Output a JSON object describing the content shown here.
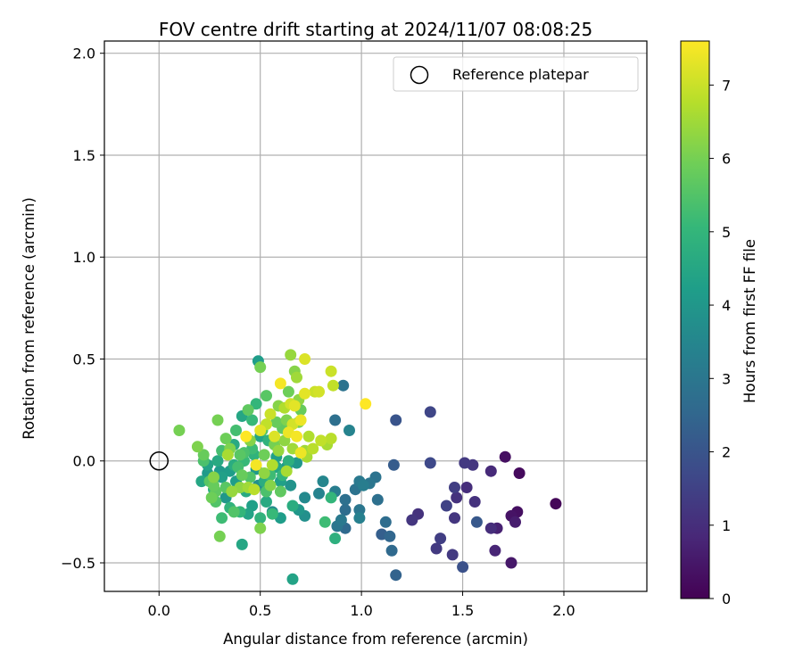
{
  "chart_data": {
    "type": "scatter",
    "title": "FOV centre drift starting at 2024/11/07 08:08:25",
    "xlabel": "Angular distance from reference (arcmin)",
    "ylabel": "Rotation from reference (arcmin)",
    "xlim": [
      -0.27,
      2.41
    ],
    "ylim": [
      -0.64,
      2.06
    ],
    "xticks": [
      0.0,
      0.5,
      1.0,
      1.5,
      2.0
    ],
    "xtick_labels": [
      "0.0",
      "0.5",
      "1.0",
      "1.5",
      "2.0"
    ],
    "yticks": [
      -0.5,
      0.0,
      0.5,
      1.0,
      1.5,
      2.0
    ],
    "ytick_labels": [
      "−0.5",
      "0.0",
      "0.5",
      "1.0",
      "1.5",
      "2.0"
    ],
    "grid": true,
    "legend": {
      "position": "top-right",
      "entries": [
        "Reference platepar"
      ]
    },
    "reference_point": {
      "x": 0.0,
      "y": 0.0,
      "marker": "hollow-circle"
    },
    "colorbar": {
      "label": "Hours from first FF file",
      "range": [
        0,
        7.6
      ],
      "ticks": [
        0,
        1,
        2,
        3,
        4,
        5,
        6,
        7
      ],
      "tick_labels": [
        "0",
        "1",
        "2",
        "3",
        "4",
        "5",
        "6",
        "7"
      ],
      "colormap": "viridis"
    },
    "colormap_stops": [
      "#440154",
      "#482878",
      "#3e4989",
      "#31688e",
      "#26828e",
      "#1f9e89",
      "#35b779",
      "#6ece58",
      "#b5de2b",
      "#fde725"
    ],
    "points": [
      {
        "x": 1.96,
        "y": -0.21,
        "c": 0.1
      },
      {
        "x": 1.78,
        "y": -0.06,
        "c": 0.2
      },
      {
        "x": 1.77,
        "y": -0.25,
        "c": 0.3
      },
      {
        "x": 1.74,
        "y": -0.27,
        "c": 0.4
      },
      {
        "x": 1.71,
        "y": 0.02,
        "c": 0.3
      },
      {
        "x": 1.74,
        "y": -0.5,
        "c": 0.5
      },
      {
        "x": 1.76,
        "y": -0.3,
        "c": 0.6
      },
      {
        "x": 1.67,
        "y": -0.33,
        "c": 0.7
      },
      {
        "x": 1.66,
        "y": -0.44,
        "c": 0.8
      },
      {
        "x": 1.64,
        "y": -0.05,
        "c": 0.9
      },
      {
        "x": 1.64,
        "y": -0.33,
        "c": 1.0
      },
      {
        "x": 1.56,
        "y": -0.2,
        "c": 1.1
      },
      {
        "x": 1.55,
        "y": -0.02,
        "c": 1.2
      },
      {
        "x": 1.51,
        "y": -0.01,
        "c": 1.3
      },
      {
        "x": 1.52,
        "y": -0.13,
        "c": 1.0
      },
      {
        "x": 1.47,
        "y": -0.18,
        "c": 1.1
      },
      {
        "x": 1.46,
        "y": -0.13,
        "c": 1.4
      },
      {
        "x": 1.46,
        "y": -0.28,
        "c": 1.2
      },
      {
        "x": 1.45,
        "y": -0.46,
        "c": 1.3
      },
      {
        "x": 1.42,
        "y": -0.22,
        "c": 1.5
      },
      {
        "x": 1.39,
        "y": -0.38,
        "c": 1.4
      },
      {
        "x": 1.37,
        "y": -0.43,
        "c": 1.3
      },
      {
        "x": 1.28,
        "y": -0.26,
        "c": 1.1
      },
      {
        "x": 1.25,
        "y": -0.29,
        "c": 1.2
      },
      {
        "x": 1.34,
        "y": 0.24,
        "c": 1.6
      },
      {
        "x": 1.34,
        "y": -0.01,
        "c": 1.7
      },
      {
        "x": 1.5,
        "y": -0.52,
        "c": 1.9
      },
      {
        "x": 1.57,
        "y": -0.3,
        "c": 2.1
      },
      {
        "x": 1.17,
        "y": 0.2,
        "c": 2.0
      },
      {
        "x": 1.16,
        "y": -0.02,
        "c": 2.2
      },
      {
        "x": 1.17,
        "y": -0.56,
        "c": 2.4
      },
      {
        "x": 1.15,
        "y": -0.44,
        "c": 2.6
      },
      {
        "x": 1.14,
        "y": -0.37,
        "c": 2.5
      },
      {
        "x": 1.12,
        "y": -0.3,
        "c": 2.7
      },
      {
        "x": 1.1,
        "y": -0.36,
        "c": 2.3
      },
      {
        "x": 1.08,
        "y": -0.19,
        "c": 2.8
      },
      {
        "x": 1.07,
        "y": -0.08,
        "c": 2.9
      },
      {
        "x": 1.04,
        "y": -0.11,
        "c": 3.0
      },
      {
        "x": 1.01,
        "y": -0.12,
        "c": 3.2
      },
      {
        "x": 0.99,
        "y": -0.1,
        "c": 3.1
      },
      {
        "x": 0.99,
        "y": -0.28,
        "c": 3.3
      },
      {
        "x": 0.99,
        "y": -0.24,
        "c": 3.0
      },
      {
        "x": 0.97,
        "y": -0.14,
        "c": 2.9
      },
      {
        "x": 0.92,
        "y": -0.24,
        "c": 2.7
      },
      {
        "x": 0.92,
        "y": -0.33,
        "c": 2.6
      },
      {
        "x": 0.92,
        "y": -0.19,
        "c": 2.8
      },
      {
        "x": 0.9,
        "y": -0.29,
        "c": 3.1
      },
      {
        "x": 0.88,
        "y": -0.32,
        "c": 3.0
      },
      {
        "x": 0.87,
        "y": -0.15,
        "c": 3.2
      },
      {
        "x": 0.91,
        "y": 0.37,
        "c": 2.9
      },
      {
        "x": 0.94,
        "y": 0.15,
        "c": 3.4
      },
      {
        "x": 0.87,
        "y": 0.2,
        "c": 2.8
      },
      {
        "x": 0.87,
        "y": -0.38,
        "c": 4.8
      },
      {
        "x": 0.85,
        "y": -0.18,
        "c": 5.0
      },
      {
        "x": 0.82,
        "y": -0.3,
        "c": 5.2
      },
      {
        "x": 0.81,
        "y": -0.1,
        "c": 3.5
      },
      {
        "x": 0.79,
        "y": -0.16,
        "c": 3.4
      },
      {
        "x": 0.72,
        "y": -0.18,
        "c": 3.6
      },
      {
        "x": 0.72,
        "y": -0.27,
        "c": 3.8
      },
      {
        "x": 0.69,
        "y": -0.24,
        "c": 4.0
      },
      {
        "x": 0.66,
        "y": -0.58,
        "c": 4.4
      },
      {
        "x": 0.65,
        "y": -0.12,
        "c": 3.9
      },
      {
        "x": 0.63,
        "y": -0.03,
        "c": 4.1
      },
      {
        "x": 0.6,
        "y": -0.28,
        "c": 4.2
      },
      {
        "x": 0.6,
        "y": -0.1,
        "c": 4.3
      },
      {
        "x": 0.58,
        "y": -0.03,
        "c": 4.5
      },
      {
        "x": 0.56,
        "y": -0.25,
        "c": 3.7
      },
      {
        "x": 0.53,
        "y": -0.2,
        "c": 4.6
      },
      {
        "x": 0.52,
        "y": -0.1,
        "c": 4.7
      },
      {
        "x": 0.5,
        "y": -0.28,
        "c": 4.9
      },
      {
        "x": 0.49,
        "y": -0.12,
        "c": 3.8
      },
      {
        "x": 0.48,
        "y": -0.04,
        "c": 4.1
      },
      {
        "x": 0.46,
        "y": -0.22,
        "c": 4.3
      },
      {
        "x": 0.44,
        "y": -0.26,
        "c": 4.4
      },
      {
        "x": 0.43,
        "y": -0.15,
        "c": 4.6
      },
      {
        "x": 0.41,
        "y": -0.41,
        "c": 4.5
      },
      {
        "x": 0.4,
        "y": -0.25,
        "c": 5.0
      },
      {
        "x": 0.38,
        "y": -0.1,
        "c": 4.2
      },
      {
        "x": 0.37,
        "y": -0.02,
        "c": 4.7
      },
      {
        "x": 0.35,
        "y": -0.23,
        "c": 4.9
      },
      {
        "x": 0.33,
        "y": -0.18,
        "c": 4.0
      },
      {
        "x": 0.31,
        "y": -0.08,
        "c": 4.3
      },
      {
        "x": 0.3,
        "y": -0.05,
        "c": 4.1
      },
      {
        "x": 0.29,
        "y": 0.0,
        "c": 4.6
      },
      {
        "x": 0.27,
        "y": -0.14,
        "c": 4.8
      },
      {
        "x": 0.24,
        "y": -0.02,
        "c": 4.4
      },
      {
        "x": 0.21,
        "y": -0.1,
        "c": 4.5
      },
      {
        "x": 0.22,
        "y": 0.0,
        "c": 5.4
      },
      {
        "x": 0.25,
        "y": -0.1,
        "c": 5.6
      },
      {
        "x": 0.27,
        "y": -0.12,
        "c": 5.8
      },
      {
        "x": 0.28,
        "y": -0.2,
        "c": 5.5
      },
      {
        "x": 0.28,
        "y": -0.15,
        "c": 5.7
      },
      {
        "x": 0.3,
        "y": -0.37,
        "c": 6.0
      },
      {
        "x": 0.31,
        "y": -0.28,
        "c": 5.2
      },
      {
        "x": 0.33,
        "y": 0.11,
        "c": 5.9
      },
      {
        "x": 0.35,
        "y": 0.06,
        "c": 6.1
      },
      {
        "x": 0.37,
        "y": -0.25,
        "c": 5.5
      },
      {
        "x": 0.38,
        "y": 0.15,
        "c": 5.3
      },
      {
        "x": 0.4,
        "y": 0.03,
        "c": 5.6
      },
      {
        "x": 0.41,
        "y": -0.07,
        "c": 5.8
      },
      {
        "x": 0.42,
        "y": 0.04,
        "c": 5.4
      },
      {
        "x": 0.44,
        "y": 0.25,
        "c": 5.7
      },
      {
        "x": 0.45,
        "y": 0.1,
        "c": 6.2
      },
      {
        "x": 0.46,
        "y": 0.2,
        "c": 5.1
      },
      {
        "x": 0.48,
        "y": 0.28,
        "c": 5.0
      },
      {
        "x": 0.49,
        "y": 0.49,
        "c": 4.2
      },
      {
        "x": 0.5,
        "y": 0.46,
        "c": 6.0
      },
      {
        "x": 0.5,
        "y": -0.33,
        "c": 6.1
      },
      {
        "x": 0.51,
        "y": 0.15,
        "c": 5.5
      },
      {
        "x": 0.52,
        "y": 0.03,
        "c": 5.9
      },
      {
        "x": 0.52,
        "y": -0.06,
        "c": 6.3
      },
      {
        "x": 0.53,
        "y": 0.32,
        "c": 5.6
      },
      {
        "x": 0.55,
        "y": -0.12,
        "c": 6.2
      },
      {
        "x": 0.57,
        "y": 0.08,
        "c": 6.0
      },
      {
        "x": 0.58,
        "y": 0.19,
        "c": 5.8
      },
      {
        "x": 0.59,
        "y": 0.05,
        "c": 6.4
      },
      {
        "x": 0.6,
        "y": -0.15,
        "c": 5.7
      },
      {
        "x": 0.62,
        "y": 0.1,
        "c": 6.3
      },
      {
        "x": 0.63,
        "y": 0.2,
        "c": 6.1
      },
      {
        "x": 0.64,
        "y": 0.34,
        "c": 5.9
      },
      {
        "x": 0.65,
        "y": 0.52,
        "c": 6.4
      },
      {
        "x": 0.66,
        "y": 0.06,
        "c": 6.5
      },
      {
        "x": 0.67,
        "y": 0.44,
        "c": 6.2
      },
      {
        "x": 0.68,
        "y": 0.41,
        "c": 6.5
      },
      {
        "x": 0.69,
        "y": 0.19,
        "c": 6.0
      },
      {
        "x": 0.7,
        "y": 0.25,
        "c": 5.8
      },
      {
        "x": 0.72,
        "y": 0.05,
        "c": 6.5
      },
      {
        "x": 0.73,
        "y": 0.02,
        "c": 6.6
      },
      {
        "x": 0.74,
        "y": 0.12,
        "c": 6.7
      },
      {
        "x": 0.76,
        "y": 0.06,
        "c": 6.8
      },
      {
        "x": 0.77,
        "y": 0.34,
        "c": 7.0
      },
      {
        "x": 0.79,
        "y": 0.34,
        "c": 7.1
      },
      {
        "x": 0.8,
        "y": 0.1,
        "c": 6.9
      },
      {
        "x": 0.83,
        "y": 0.08,
        "c": 6.6
      },
      {
        "x": 0.85,
        "y": 0.11,
        "c": 6.8
      },
      {
        "x": 0.85,
        "y": 0.44,
        "c": 7.0
      },
      {
        "x": 0.86,
        "y": 0.37,
        "c": 6.9
      },
      {
        "x": 0.72,
        "y": 0.5,
        "c": 7.2
      },
      {
        "x": 0.72,
        "y": 0.33,
        "c": 7.3
      },
      {
        "x": 0.7,
        "y": 0.2,
        "c": 7.4
      },
      {
        "x": 0.68,
        "y": 0.12,
        "c": 7.5
      },
      {
        "x": 0.67,
        "y": 0.27,
        "c": 7.3
      },
      {
        "x": 0.65,
        "y": 0.28,
        "c": 7.1
      },
      {
        "x": 0.64,
        "y": 0.14,
        "c": 7.4
      },
      {
        "x": 0.6,
        "y": 0.38,
        "c": 7.5
      },
      {
        "x": 0.57,
        "y": 0.12,
        "c": 7.2
      },
      {
        "x": 0.55,
        "y": 0.23,
        "c": 7.0
      },
      {
        "x": 0.5,
        "y": 0.15,
        "c": 7.3
      },
      {
        "x": 0.48,
        "y": -0.02,
        "c": 7.5
      },
      {
        "x": 0.43,
        "y": 0.12,
        "c": 7.6
      },
      {
        "x": 1.02,
        "y": 0.28,
        "c": 7.6
      },
      {
        "x": 0.7,
        "y": 0.04,
        "c": 7.4
      },
      {
        "x": 0.63,
        "y": -0.05,
        "c": 6.6
      },
      {
        "x": 0.56,
        "y": -0.02,
        "c": 6.7
      },
      {
        "x": 0.47,
        "y": -0.14,
        "c": 6.8
      },
      {
        "x": 0.44,
        "y": -0.13,
        "c": 6.5
      },
      {
        "x": 0.4,
        "y": -0.13,
        "c": 6.3
      },
      {
        "x": 0.36,
        "y": -0.15,
        "c": 6.4
      },
      {
        "x": 0.34,
        "y": 0.03,
        "c": 6.6
      },
      {
        "x": 0.29,
        "y": 0.2,
        "c": 6.0
      },
      {
        "x": 0.27,
        "y": -0.08,
        "c": 6.2
      },
      {
        "x": 0.19,
        "y": 0.07,
        "c": 6.1
      },
      {
        "x": 0.1,
        "y": 0.15,
        "c": 6.0
      },
      {
        "x": 0.22,
        "y": 0.03,
        "c": 5.8
      },
      {
        "x": 0.26,
        "y": -0.18,
        "c": 5.9
      },
      {
        "x": 0.33,
        "y": -0.13,
        "c": 5.6
      },
      {
        "x": 0.39,
        "y": -0.03,
        "c": 5.3
      },
      {
        "x": 0.42,
        "y": 0.0,
        "c": 5.1
      },
      {
        "x": 0.46,
        "y": 0.06,
        "c": 5.2
      },
      {
        "x": 0.53,
        "y": -0.15,
        "c": 5.4
      },
      {
        "x": 0.56,
        "y": -0.26,
        "c": 5.1
      },
      {
        "x": 0.61,
        "y": -0.07,
        "c": 5.0
      },
      {
        "x": 0.64,
        "y": 0.0,
        "c": 4.8
      },
      {
        "x": 0.66,
        "y": -0.22,
        "c": 4.7
      },
      {
        "x": 0.54,
        "y": 0.1,
        "c": 4.9
      },
      {
        "x": 0.37,
        "y": 0.08,
        "c": 4.6
      },
      {
        "x": 0.31,
        "y": 0.05,
        "c": 5.3
      },
      {
        "x": 0.45,
        "y": -0.08,
        "c": 5.5
      },
      {
        "x": 0.58,
        "y": 0.02,
        "c": 4.3
      },
      {
        "x": 0.68,
        "y": -0.01,
        "c": 4.0
      },
      {
        "x": 0.41,
        "y": 0.22,
        "c": 4.5
      },
      {
        "x": 0.5,
        "y": 0.12,
        "c": 4.4
      },
      {
        "x": 0.35,
        "y": -0.05,
        "c": 4.2
      },
      {
        "x": 0.24,
        "y": -0.06,
        "c": 4.1
      },
      {
        "x": 0.62,
        "y": 0.26,
        "c": 6.7
      },
      {
        "x": 0.69,
        "y": 0.3,
        "c": 6.3
      },
      {
        "x": 0.53,
        "y": 0.18,
        "c": 6.9
      },
      {
        "x": 0.59,
        "y": 0.27,
        "c": 6.2
      },
      {
        "x": 0.66,
        "y": 0.18,
        "c": 7.1
      },
      {
        "x": 0.61,
        "y": 0.16,
        "c": 5.7
      },
      {
        "x": 0.55,
        "y": -0.07,
        "c": 5.2
      },
      {
        "x": 0.47,
        "y": 0.03,
        "c": 4.9
      }
    ]
  }
}
